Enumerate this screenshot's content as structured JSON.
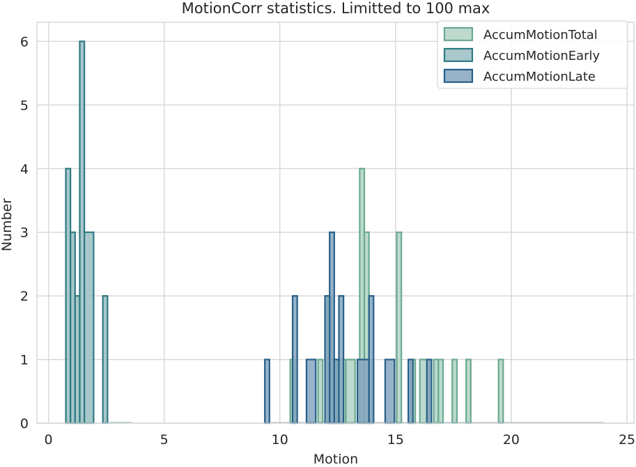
{
  "chart_data": {
    "type": "histogram",
    "title": "MotionCorr statistics. Limitted to 100 max",
    "xlabel": "Motion",
    "ylabel": "Number",
    "xlim": [
      -0.5,
      25.3
    ],
    "ylim": [
      0,
      6.3
    ],
    "xticks": [
      0,
      5,
      10,
      15,
      20,
      25
    ],
    "yticks": [
      0,
      1,
      2,
      3,
      4,
      5,
      6
    ],
    "grid": true,
    "legend_position": "top-right",
    "series": [
      {
        "name": "AccumMotionTotal",
        "stroke": "#6aaa90",
        "fill": "#b3d4c6",
        "bins": [
          [
            10.45,
            10.65,
            1
          ],
          [
            11.65,
            11.85,
            1
          ],
          [
            12.05,
            12.25,
            2
          ],
          [
            12.25,
            12.45,
            1
          ],
          [
            12.45,
            12.85,
            1
          ],
          [
            12.85,
            13.25,
            1
          ],
          [
            13.45,
            13.65,
            4
          ],
          [
            13.65,
            13.85,
            3
          ],
          [
            13.85,
            14.05,
            1
          ],
          [
            15.05,
            15.25,
            3
          ],
          [
            15.65,
            15.85,
            1
          ],
          [
            16.05,
            16.45,
            1
          ],
          [
            16.65,
            16.85,
            1
          ],
          [
            16.85,
            17.05,
            1
          ],
          [
            17.45,
            17.65,
            1
          ],
          [
            18.05,
            18.25,
            1
          ],
          [
            19.45,
            19.65,
            1
          ]
        ]
      },
      {
        "name": "AccumMotionEarly",
        "stroke": "#2e7a82",
        "fill": "#99bec3",
        "bins": [
          [
            0.75,
            0.95,
            4
          ],
          [
            0.95,
            1.15,
            3
          ],
          [
            1.15,
            1.35,
            2
          ],
          [
            1.35,
            1.55,
            6
          ],
          [
            1.55,
            1.95,
            3
          ],
          [
            2.35,
            2.55,
            2
          ]
        ]
      },
      {
        "name": "AccumMotionLate",
        "stroke": "#265f88",
        "fill": "#86a6c0",
        "bins": [
          [
            9.35,
            9.55,
            1
          ],
          [
            10.55,
            10.75,
            2
          ],
          [
            11.15,
            11.55,
            1
          ],
          [
            11.95,
            12.15,
            2
          ],
          [
            12.15,
            12.35,
            3
          ],
          [
            12.35,
            12.55,
            1
          ],
          [
            12.55,
            12.75,
            2
          ],
          [
            13.35,
            13.85,
            1
          ],
          [
            13.85,
            14.05,
            2
          ],
          [
            14.55,
            14.95,
            1
          ],
          [
            15.55,
            15.75,
            1
          ],
          [
            16.35,
            16.55,
            1
          ],
          [
            17.35,
            17.45,
            0
          ]
        ]
      }
    ]
  }
}
